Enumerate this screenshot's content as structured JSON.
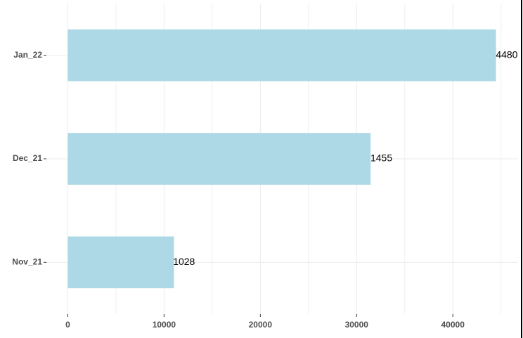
{
  "chart_data": {
    "type": "barh",
    "categories": [
      "Nov_21",
      "Dec_21",
      "Jan_22"
    ],
    "values": [
      11028,
      31455,
      44480
    ],
    "color": "#add8e6",
    "xlim": [
      -2224,
      46704
    ],
    "xticks": [
      0,
      10000,
      20000,
      30000,
      40000
    ],
    "grid": true
  }
}
